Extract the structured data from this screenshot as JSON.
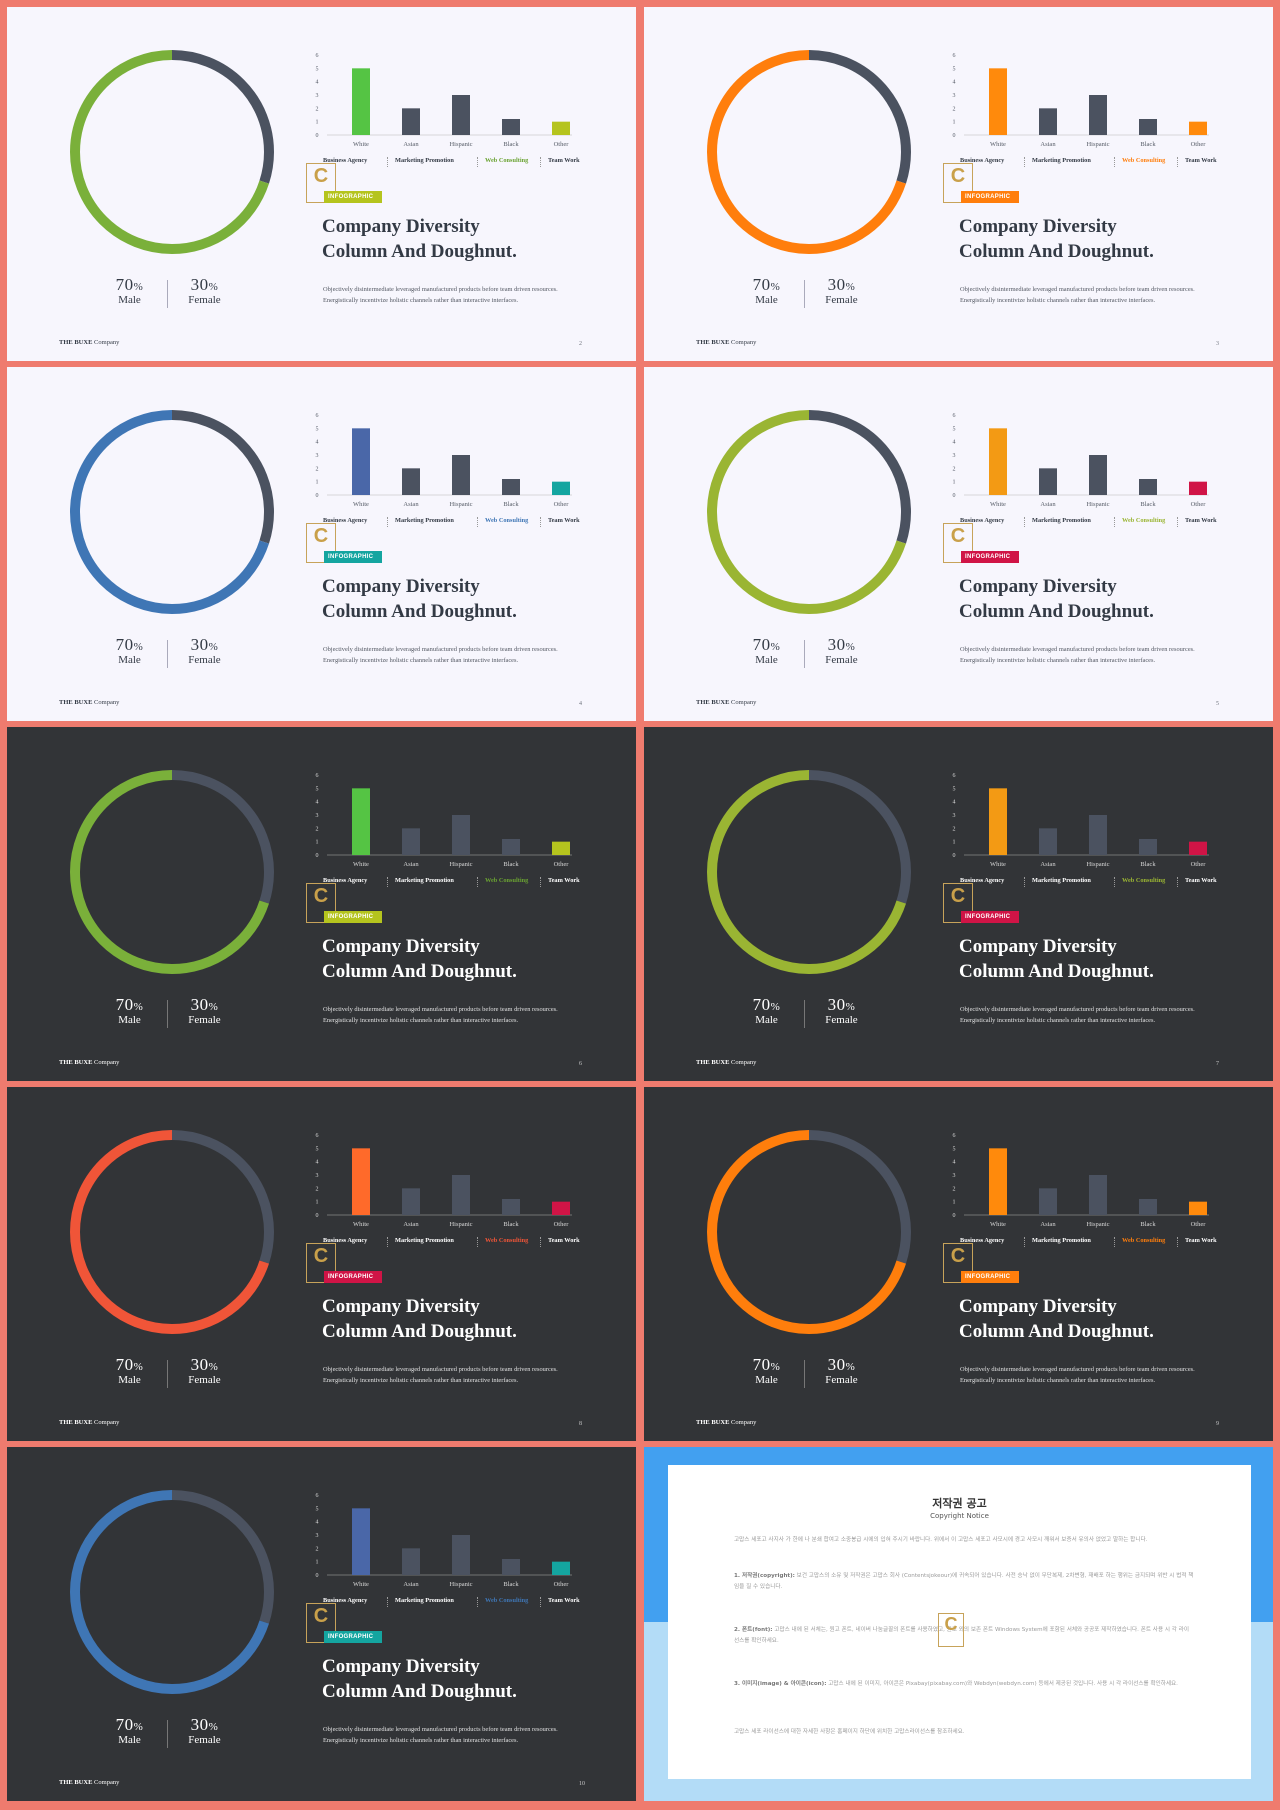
{
  "slides": [
    {
      "theme": "light",
      "accent": "#7ab03a",
      "donut_color": "#7ab03a",
      "bar_first": "#55c444",
      "bar_last": "#b5c41e",
      "badge_color": "#b5c41e",
      "tab_active_color": "#6aa332",
      "page": "2"
    },
    {
      "theme": "light",
      "accent": "#ff7e0c",
      "donut_color": "#ff7e0c",
      "bar_first": "#ff8a0c",
      "bar_last": "#ff8a0c",
      "badge_color": "#ff7e0c",
      "tab_active_color": "#ff7e0c",
      "page": "3"
    },
    {
      "theme": "light",
      "accent": "#3f76b5",
      "donut_color": "#3f76b5",
      "bar_first": "#4a67a8",
      "bar_last": "#14a5a0",
      "badge_color": "#14a5a0",
      "tab_active_color": "#3f76b5",
      "page": "4"
    },
    {
      "theme": "light",
      "accent": "#9ab533",
      "donut_color": "#9ab533",
      "bar_first": "#f39a14",
      "bar_last": "#d01446",
      "badge_color": "#d01446",
      "tab_active_color": "#9ab533",
      "page": "5"
    },
    {
      "theme": "dark",
      "accent": "#7ab03a",
      "donut_color": "#7ab03a",
      "bar_first": "#55c444",
      "bar_last": "#b5c41e",
      "badge_color": "#b5c41e",
      "tab_active_color": "#6aa332",
      "page": "6"
    },
    {
      "theme": "dark",
      "accent": "#9ab533",
      "donut_color": "#9ab533",
      "bar_first": "#f39a14",
      "bar_last": "#d01446",
      "badge_color": "#d01446",
      "tab_active_color": "#9ab533",
      "page": "7"
    },
    {
      "theme": "dark",
      "accent": "#f05538",
      "donut_color": "#f05538",
      "bar_first": "#ff6a2a",
      "bar_last": "#d01446",
      "badge_color": "#d01446",
      "tab_active_color": "#f05538",
      "page": "8"
    },
    {
      "theme": "dark",
      "accent": "#ff7e0c",
      "donut_color": "#ff7e0c",
      "bar_first": "#ff8a0c",
      "bar_last": "#ff8a0c",
      "badge_color": "#ff7e0c",
      "tab_active_color": "#ff7e0c",
      "page": "9"
    },
    {
      "theme": "dark",
      "accent": "#3f76b5",
      "donut_color": "#3f76b5",
      "bar_first": "#4a67a8",
      "bar_last": "#14a5a0",
      "badge_color": "#14a5a0",
      "tab_active_color": "#3f76b5",
      "page": "10"
    }
  ],
  "content": {
    "male_value": "70",
    "female_value": "30",
    "pct_symbol": "%",
    "male_label": "Male",
    "female_label": "Female",
    "tabs": [
      "Business Agency",
      "Marketing Promotion",
      "Web Consulting",
      "Team Work"
    ],
    "active_tab": 2,
    "badge": "INFOGRAPHIC",
    "logo_letter": "C",
    "title_line1": "Company Diversity",
    "title_line2": "Column And Doughnut.",
    "desc_line1": "Objectively disintermediate leveraged manufactured products before team driven resources.",
    "desc_line2": "Energistically incentivize holistic channels rather than interactive interfaces.",
    "brand_bold": "THE BUXE",
    "brand_rest": " Company"
  },
  "chart_data": {
    "type": "bar",
    "categories": [
      "White",
      "Asian",
      "Hispanic",
      "Black",
      "Other"
    ],
    "values": [
      5,
      2,
      3,
      1.2,
      1
    ],
    "ylim": [
      0,
      6
    ],
    "yticks": [
      "0",
      "1",
      "2",
      "3",
      "4",
      "5",
      "6"
    ],
    "donut": {
      "male_pct": 70,
      "female_pct": 30
    },
    "neutral_color_light": "#4b5260",
    "neutral_color_dark": "#4b5260"
  },
  "copyright": {
    "title": "저작권 공고",
    "subtitle": "Copyright Notice",
    "intro": "고맙스 세포고 사지사 가 한에 나 분쇄 합여고 소중봉급 시에의 입혀 주시기 바랍니다. 위에서 이 고맙스 세포고 사모시에 경고 사모시 깨워서 보증서 유의사 없었고 말하는 합니다.",
    "p1_head": "1. 저작권(copyright):",
    "p1": " 보건 고맙스의 소유 및 저작권은 고맙스 회사 (Contentsjokeour)에 귀속되어 있습니다. 사전 승낙 없이 무단복제, 2차변형, 재배포 하는 행위는 금지되며 위반 시 법적 책임을 질 수 있습니다.",
    "p2_head": "2. 폰트(font):",
    "p2": " 고맙스 내에 된 서체는, 원고 폰트, 네이버 나눔글꼴의 폰트를 사용하였고, 원고 외의 보존 폰트 Windows System에 포함된 서체와 공공포 제작하였습니다. 폰트 사용 시 각 라이선스를 확인하세요.",
    "p3_head": "3. 이미지(image) & 아이콘(icon):",
    "p3": " 고맙스 내에 된 이미지, 아이콘은 Pixabay(pixabay.com)와 Webdyn(webdyn.com) 등에서 제공된 것입니다. 사용 시 각 라이선스를 확인하세요.",
    "outro": "고맙스 세포 라이선스에 대한 자세한 사항은 홈페이지 하단에 위치한 고맙스라이선스를 참조하세요."
  }
}
